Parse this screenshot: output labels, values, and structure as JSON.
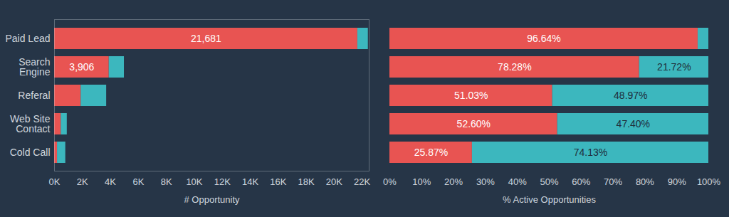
{
  "chart_data": [
    {
      "type": "bar",
      "orientation": "horizontal",
      "stacked": true,
      "data_labels": true,
      "xlabel": "# Opportunity",
      "categories": [
        "Paid Lead",
        "Search Engine",
        "Referal",
        "Web Site Contact",
        "Cold Call"
      ],
      "series": [
        {
          "color": "#e85452",
          "values": [
            21681,
            3906,
            1900,
            477,
            207
          ],
          "value_labels": [
            "21,681",
            "3,906",
            null,
            null,
            null
          ]
        },
        {
          "color": "#3cb7be",
          "values": [
            754,
            1084,
            1823,
            430,
            593
          ],
          "value_labels": [
            null,
            null,
            null,
            null,
            null
          ]
        }
      ],
      "xlim": [
        0,
        22500
      ],
      "xticks": [
        {
          "value": 0,
          "label": "0K"
        },
        {
          "value": 2000,
          "label": "2K"
        },
        {
          "value": 4000,
          "label": "4K"
        },
        {
          "value": 6000,
          "label": "6K"
        },
        {
          "value": 8000,
          "label": "8K"
        },
        {
          "value": 10000,
          "label": "10K"
        },
        {
          "value": 12000,
          "label": "12K"
        },
        {
          "value": 14000,
          "label": "14K"
        },
        {
          "value": 16000,
          "label": "16K"
        },
        {
          "value": 18000,
          "label": "18K"
        },
        {
          "value": 20000,
          "label": "20K"
        },
        {
          "value": 22000,
          "label": "22K"
        }
      ]
    },
    {
      "type": "bar",
      "orientation": "horizontal",
      "stacked": true,
      "data_labels": true,
      "tick_labels": "x",
      "xlabel": "% Active Opportunities",
      "categories": [
        "Paid Lead",
        "Search Engine",
        "Referal",
        "Web Site Contact",
        "Cold Call"
      ],
      "series": [
        {
          "color": "#e85452",
          "values": [
            96.64,
            78.28,
            51.03,
            52.6,
            25.87
          ],
          "value_labels": [
            "96.64%",
            "78.28%",
            "51.03%",
            "52.60%",
            "25.87%"
          ]
        },
        {
          "color": "#3cb7be",
          "values": [
            3.36,
            21.72,
            48.97,
            47.4,
            74.13
          ],
          "value_labels": [
            null,
            "21.72%",
            "48.97%",
            "47.40%",
            "74.13%"
          ]
        }
      ],
      "xlim": [
        0,
        100
      ],
      "xticks": [
        {
          "value": 0,
          "label": "0%"
        },
        {
          "value": 10,
          "label": "10%"
        },
        {
          "value": 20,
          "label": "20%"
        },
        {
          "value": 30,
          "label": "30%"
        },
        {
          "value": 40,
          "label": "40%"
        },
        {
          "value": 50,
          "label": "50%"
        },
        {
          "value": 60,
          "label": "60%"
        },
        {
          "value": 70,
          "label": "70%"
        },
        {
          "value": 80,
          "label": "80%"
        },
        {
          "value": 90,
          "label": "90%"
        },
        {
          "value": 100,
          "label": "100%"
        }
      ]
    }
  ]
}
